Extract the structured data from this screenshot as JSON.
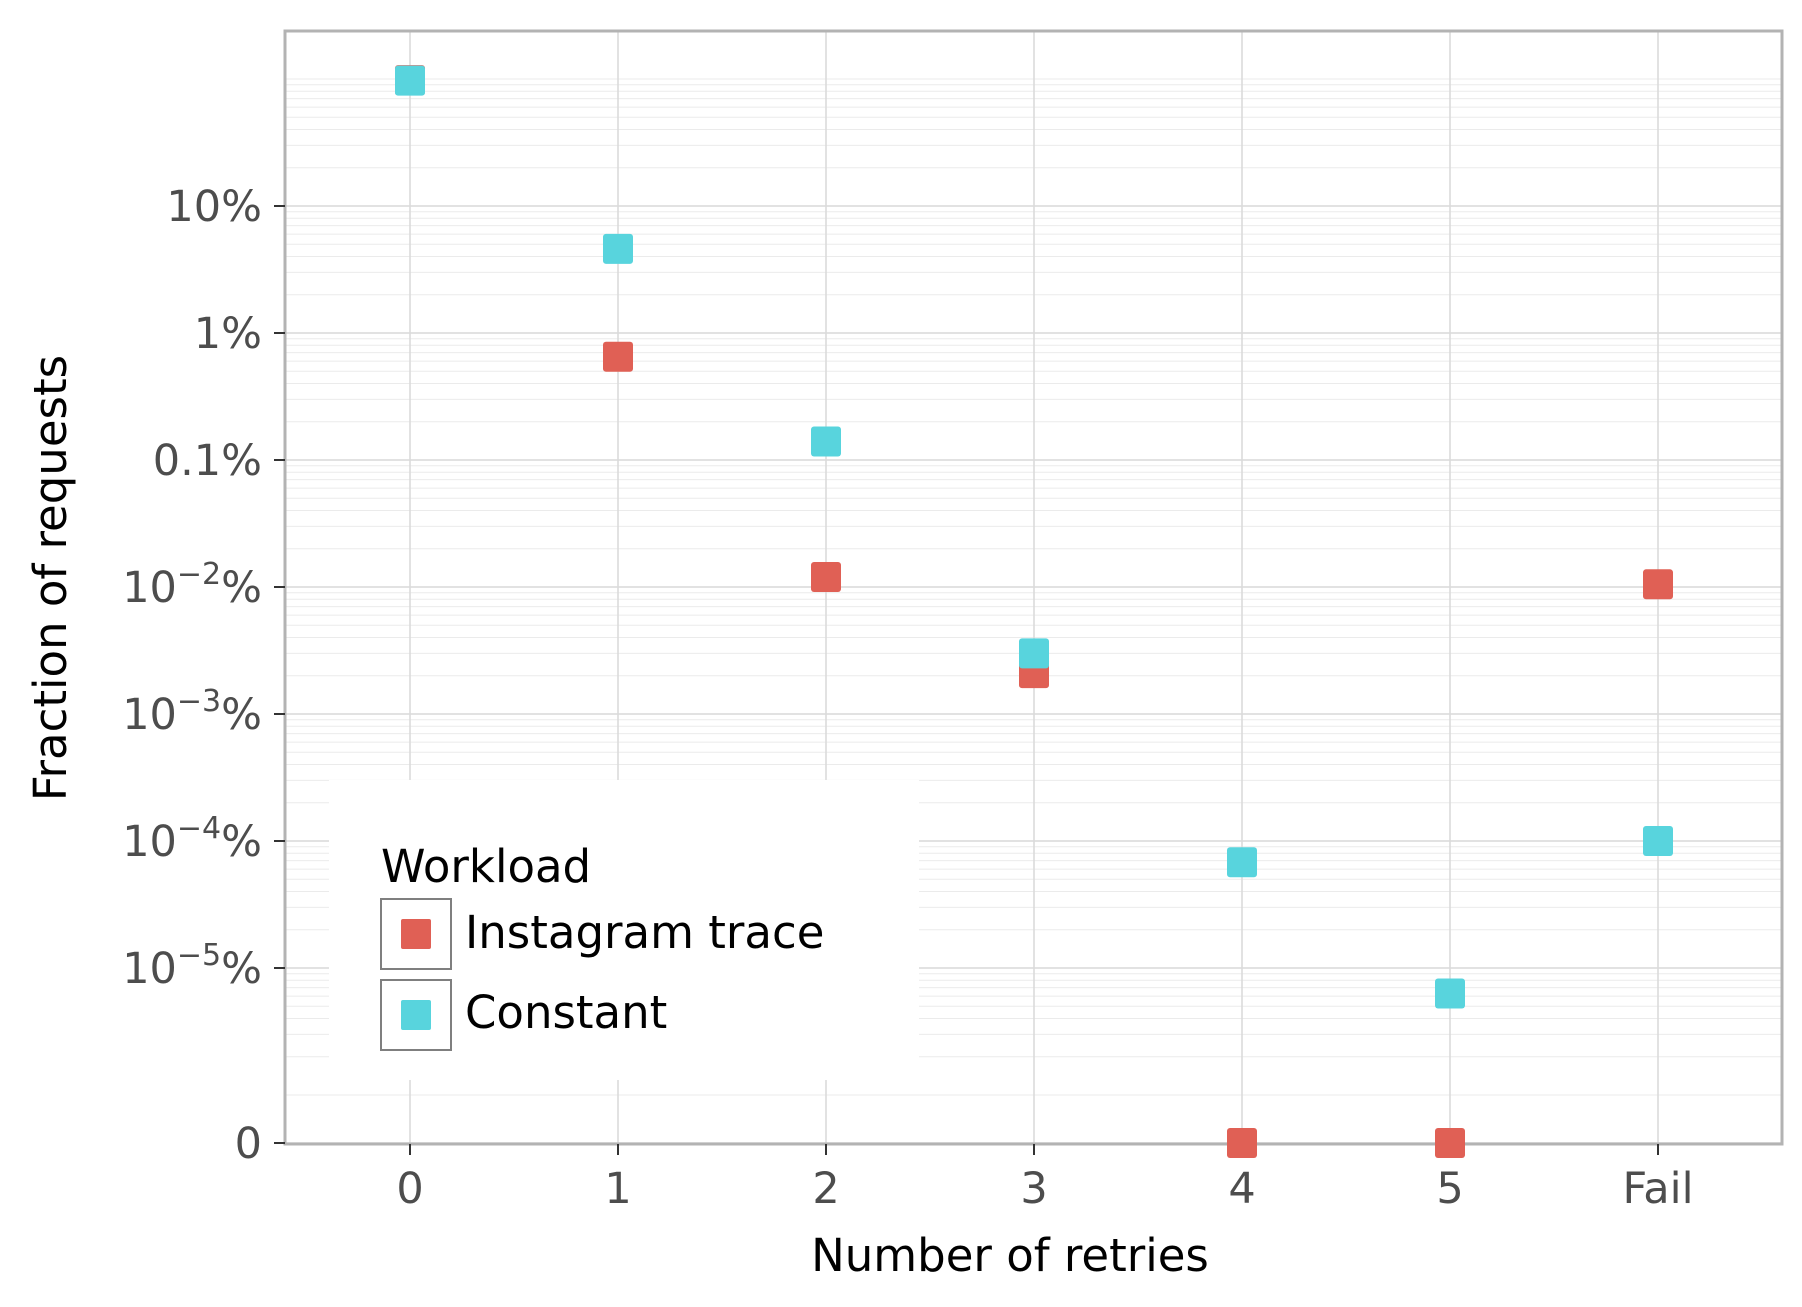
{
  "chart_data": {
    "type": "scatter",
    "xlabel": "Number of retries",
    "ylabel": "Fraction of requests",
    "categories": [
      "0",
      "1",
      "2",
      "3",
      "4",
      "5",
      "Fail"
    ],
    "y_scale": "log (with 0 shown at the bottom)",
    "y_ticks": [
      {
        "value": 0,
        "label": "0",
        "sup": ""
      },
      {
        "value": 1e-05,
        "label": "10",
        "sup": "−5",
        "suffix": "%"
      },
      {
        "value": 0.0001,
        "label": "10",
        "sup": "−4",
        "suffix": "%"
      },
      {
        "value": 0.001,
        "label": "10",
        "sup": "−3",
        "suffix": "%"
      },
      {
        "value": 0.01,
        "label": "10",
        "sup": "−2",
        "suffix": "%"
      },
      {
        "value": 0.1,
        "label": "0.1%",
        "sup": ""
      },
      {
        "value": 1,
        "label": "1%",
        "sup": ""
      },
      {
        "value": 10,
        "label": "10%",
        "sup": ""
      }
    ],
    "grid": true,
    "legend": {
      "title": "Workload",
      "position": "bottom-left"
    },
    "series": [
      {
        "name": "Instagram trace",
        "color": "#e06055",
        "values_percent": [
          98,
          0.65,
          0.012,
          0.0021,
          0,
          0,
          0.0105
        ]
      },
      {
        "name": "Constant",
        "color": "#58d4dd",
        "values_percent": [
          97,
          4.6,
          0.14,
          0.003,
          6.8e-05,
          6.3e-06,
          0.0001
        ]
      }
    ]
  }
}
